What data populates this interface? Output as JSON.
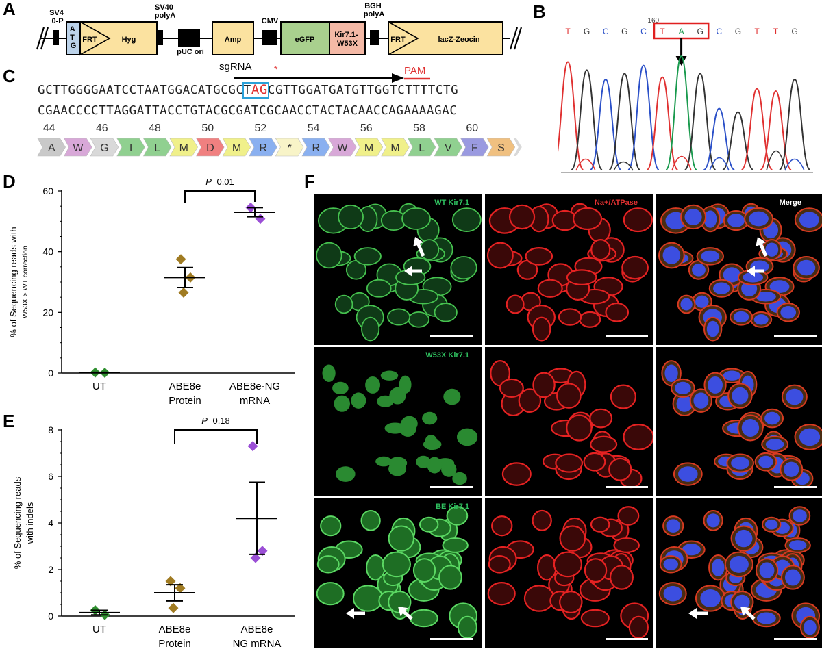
{
  "panels": {
    "A": "A",
    "B": "B",
    "C": "C",
    "D": "D",
    "E": "E",
    "F": "F"
  },
  "panelA": {
    "labels": {
      "sv40p": "SV4\n0-P",
      "atg": "A\nT\nG",
      "frt1": "FRT",
      "hyg": "Hyg",
      "sv40polyA": "SV40\npolyA",
      "puc": "pUC ori",
      "amp": "Amp",
      "cmv": "CMV",
      "egfp": "eGFP",
      "kir": "Kir7.1-\nW53X",
      "bgh": "BGH\npolyA",
      "frt2": "FRT",
      "lacz": "lacZ-Zeocin"
    },
    "colors": {
      "atg": "#bcd3ea",
      "yellow": "#fbe2a0",
      "green": "#a9d08e",
      "pink": "#f4b9a6"
    }
  },
  "panelB": {
    "position_label": "160",
    "bases": [
      "T",
      "G",
      "C",
      "G",
      "C",
      "T",
      "A",
      "G",
      "C",
      "G",
      "T",
      "T",
      "G"
    ],
    "colors": {
      "T": "#e03131",
      "G": "#333333",
      "C": "#2b50c8",
      "A": "#1a9a4e"
    }
  },
  "panelC": {
    "sgrna": "sgRNA",
    "pam": "PAM",
    "star": "*",
    "seq_top_a": "GCTTGGGGAATCCTAATGGACATGCGC",
    "seq_top_t": "T",
    "seq_top_ag": "AG",
    "seq_top_b": "CGTTGGATGATGTTGGTCTTTTCTG",
    "seq_bottom": "CGAACCCCTTAGGATTACCTGTACGCGATCGCAACCTACTACAACCAGAAAAGAC",
    "numbers": [
      "44",
      "46",
      "48",
      "50",
      "52",
      "54",
      "56",
      "58",
      "60"
    ],
    "aa": [
      {
        "l": "A",
        "c": "#c9c9c9"
      },
      {
        "l": "W",
        "c": "#d8a8d8"
      },
      {
        "l": "G",
        "c": "#d9d9d9"
      },
      {
        "l": "I",
        "c": "#90d090"
      },
      {
        "l": "L",
        "c": "#90d090"
      },
      {
        "l": "M",
        "c": "#f0f08a"
      },
      {
        "l": "D",
        "c": "#f08080"
      },
      {
        "l": "M",
        "c": "#f0f08a"
      },
      {
        "l": "R",
        "c": "#8ab0f0"
      },
      {
        "l": "*",
        "c": "#f8f4c8"
      },
      {
        "l": "R",
        "c": "#8ab0f0"
      },
      {
        "l": "W",
        "c": "#d8a8d8"
      },
      {
        "l": "M",
        "c": "#f0f08a"
      },
      {
        "l": "M",
        "c": "#f0f08a"
      },
      {
        "l": "L",
        "c": "#90d090"
      },
      {
        "l": "V",
        "c": "#90d090"
      },
      {
        "l": "F",
        "c": "#9a9ae0"
      },
      {
        "l": "S",
        "c": "#f0c080"
      }
    ]
  },
  "chart_data": [
    {
      "type": "scatter",
      "panel": "D",
      "ylabel_line1": "% of Sequencing reads with",
      "ylabel_line2": "W53X > WT correction",
      "ylim": [
        0,
        60
      ],
      "yticks": [
        "0",
        "20",
        "40",
        "60"
      ],
      "categories": [
        {
          "line1": "UT",
          "line2": ""
        },
        {
          "line1": "ABE8e",
          "line2": "Protein"
        },
        {
          "line1": "ABE8e-NG",
          "line2": "mRNA"
        }
      ],
      "points": [
        {
          "cat": 0,
          "y": 0.2,
          "color": "#2f8f2f"
        },
        {
          "cat": 0,
          "y": 0.1,
          "color": "#2f8f2f"
        },
        {
          "cat": 1,
          "y": 37.5,
          "color": "#a07b22"
        },
        {
          "cat": 1,
          "y": 31.5,
          "color": "#a07b22"
        },
        {
          "cat": 1,
          "y": 26.5,
          "color": "#a07b22"
        },
        {
          "cat": 2,
          "y": 54.5,
          "color": "#9b4fd6"
        },
        {
          "cat": 2,
          "y": 50.8,
          "color": "#9b4fd6"
        }
      ],
      "means": [
        {
          "cat": 0,
          "mean": 0.15,
          "sem": 0.1
        },
        {
          "cat": 1,
          "mean": 31.5,
          "sem": 3.3
        },
        {
          "cat": 2,
          "mean": 53.0,
          "sem": 1.5
        }
      ],
      "significance": {
        "from": 1,
        "to": 2,
        "p_italic": "P",
        "p_rest": "=0.01"
      }
    },
    {
      "type": "scatter",
      "panel": "E",
      "ylabel_line1": "% of Sequencing reads",
      "ylabel_line2": "with indels",
      "ylim": [
        0,
        8
      ],
      "yticks": [
        "0",
        "2",
        "4",
        "6",
        "8"
      ],
      "categories": [
        {
          "line1": "UT",
          "line2": ""
        },
        {
          "line1": "ABE8e",
          "line2": "Protein"
        },
        {
          "line1": "ABE8e",
          "line2": "NG mRNA"
        }
      ],
      "points": [
        {
          "cat": 0,
          "y": 0.25,
          "color": "#2f8f2f"
        },
        {
          "cat": 0,
          "y": 0.05,
          "color": "#2f8f2f"
        },
        {
          "cat": 1,
          "y": 1.5,
          "color": "#a07b22"
        },
        {
          "cat": 1,
          "y": 1.2,
          "color": "#a07b22"
        },
        {
          "cat": 1,
          "y": 0.35,
          "color": "#a07b22"
        },
        {
          "cat": 2,
          "y": 7.3,
          "color": "#9b4fd6"
        },
        {
          "cat": 2,
          "y": 2.8,
          "color": "#9b4fd6"
        },
        {
          "cat": 2,
          "y": 2.5,
          "color": "#9b4fd6"
        }
      ],
      "means": [
        {
          "cat": 0,
          "mean": 0.15,
          "sem": 0.1
        },
        {
          "cat": 1,
          "mean": 1.0,
          "sem": 0.35
        },
        {
          "cat": 2,
          "mean": 4.2,
          "sem": 1.55
        }
      ],
      "significance": {
        "from": 1,
        "to": 2,
        "p_italic": "P",
        "p_rest": "=0.18"
      }
    }
  ],
  "panelF": {
    "row_titles": [
      "WT Kir7.1",
      "W53X Kir7.1",
      "BE Kir7.1"
    ],
    "col2_title": "Na+/ATPase",
    "col3_title": "Merge",
    "title_colors": {
      "green": "#2fbf5f",
      "red": "#e03030",
      "white": "#ffffff"
    }
  }
}
